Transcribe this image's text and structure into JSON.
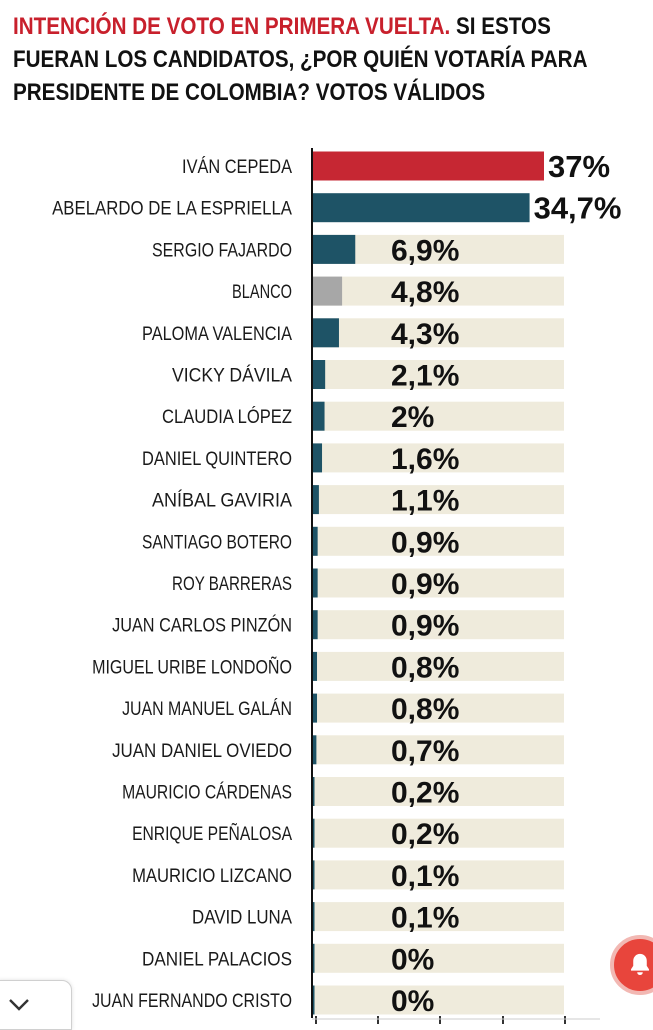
{
  "header": {
    "title_highlight": "INTENCIÓN DE VOTO EN PRIMERA VUELTA.",
    "title_rest": " SI ESTOS FUERAN LOS CANDIDATOS, ¿POR QUIÉN VOTARÍA PARA PRESIDENTE DE COLOMBIA? VOTOS VÁLIDOS"
  },
  "colors": {
    "highlight_red": "#c8202c",
    "bar_red": "#c62733",
    "bar_teal": "#1e5366",
    "bar_gray": "#a7a7a7",
    "track": "#efebdc"
  },
  "chart_data": {
    "type": "bar",
    "orientation": "horizontal",
    "xlim": [
      0,
      37
    ],
    "categories": [
      "IVÁN CEPEDA",
      "ABELARDO DE LA ESPRIELLA",
      "SERGIO FAJARDO",
      "BLANCO",
      "PALOMA VALENCIA",
      "VICKY DÁVILA",
      "CLAUDIA LÓPEZ",
      "DANIEL QUINTERO",
      "ANÍBAL GAVIRIA",
      "SANTIAGO BOTERO",
      "ROY BARRERAS",
      "JUAN CARLOS PINZÓN",
      "MIGUEL URIBE LONDOÑO",
      "JUAN MANUEL GALÁN",
      "JUAN DANIEL OVIEDO",
      "MAURICIO CÁRDENAS",
      "ENRIQUE PEÑALOSA",
      "MAURICIO LIZCANO",
      "DAVID LUNA",
      "DANIEL PALACIOS",
      "JUAN FERNANDO CRISTO"
    ],
    "values": [
      37,
      34.7,
      6.9,
      4.8,
      4.3,
      2.1,
      2,
      1.6,
      1.1,
      0.9,
      0.9,
      0.9,
      0.8,
      0.8,
      0.7,
      0.2,
      0.2,
      0.1,
      0.1,
      0,
      0
    ],
    "value_labels": [
      "37%",
      "34,7%",
      "6,9%",
      "4,8%",
      "4,3%",
      "2,1%",
      "2%",
      "1,6%",
      "1,1%",
      "0,9%",
      "0,9%",
      "0,9%",
      "0,8%",
      "0,8%",
      "0,7%",
      "0,2%",
      "0,2%",
      "0,1%",
      "0,1%",
      "0%",
      "0%"
    ],
    "bar_colors": [
      "red",
      "teal",
      "teal",
      "gray",
      "teal",
      "teal",
      "teal",
      "teal",
      "teal",
      "teal",
      "teal",
      "teal",
      "teal",
      "teal",
      "teal",
      "teal",
      "teal",
      "teal",
      "teal",
      "teal",
      "teal"
    ]
  },
  "ui": {
    "notification_icon": "bell-icon",
    "collapse_icon": "chevron-down-icon"
  }
}
